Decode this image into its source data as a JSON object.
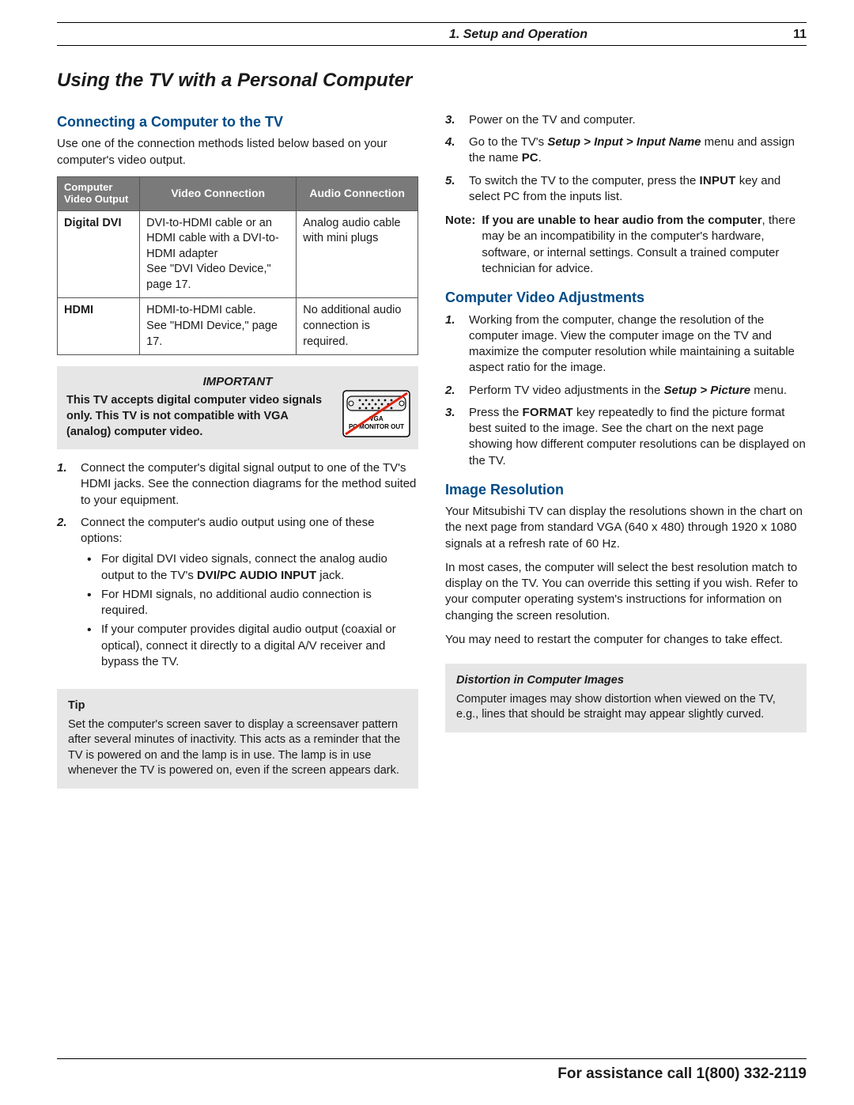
{
  "header": {
    "section": "1.  Setup and Operation",
    "page": "11"
  },
  "title": "Using the TV with a Personal Computer",
  "left": {
    "h_connect": "Connecting a Computer to the TV",
    "intro": "Use one of the connection methods listed below based on your computer's video output.",
    "table": {
      "headers": [
        "Computer Video Output",
        "Video Connection",
        "Audio Connection"
      ],
      "rows": [
        {
          "out": "Digital DVI",
          "video": "DVI-to-HDMI cable or an HDMI cable with a DVI-to-HDMI adapter\nSee \"DVI Video Device,\" page 17.",
          "audio": "Analog audio cable with mini plugs"
        },
        {
          "out": "HDMI",
          "video": "HDMI-to-HDMI cable.\nSee \"HDMI Device,\" page 17.",
          "audio": "No additional audio connec­tion is required."
        }
      ]
    },
    "important": {
      "title": "IMPORTANT",
      "body": "This TV accepts digital computer video signals only.  This TV is not compatible with VGA (analog) computer video.",
      "vga_label1": "VGA",
      "vga_label2": "PC MONITOR OUT"
    },
    "steps": [
      "Connect the computer's digital signal output to one of the TV's HDMI jacks.  See the connection dia­grams for the method suited to your equipment.",
      "Connect the computer's audio output using one of these options:"
    ],
    "bullets": [
      "For digital DVI video signals, connect the analog audio output to the TV's <b>DVI/PC AUDIO INPUT</b> jack.",
      "For HDMI signals, no additional audio connec­tion is required.",
      "If your computer provides digital audio output (coaxial or optical), connect it directly to a digital A/V receiver and bypass the TV."
    ],
    "tip": {
      "title": "Tip",
      "body": "Set the computer's screen saver to display a screensaver pattern after several minutes of inactiv­ity.  This acts as a reminder that the TV is powered on and the lamp is in use.  The lamp is in use whenever the TV is powered on, even if the screen appears dark."
    }
  },
  "right": {
    "steps": [
      "Power on the TV and computer.",
      "Go to the TV's <b><i>Setup &gt; Input &gt; Input Name</i></b> menu and assign the name <b>PC</b>.",
      "To switch the TV to the computer, press the <b class='smallcaps'>INPUT</b> key and select PC from the inputs list."
    ],
    "note_label": "Note:",
    "note_body": "<b>If you are unable to hear audio from the computer</b>, there may be an incompatibility in the computer's hardware, software, or internal settings.  Consult a trained computer technician for advice.",
    "h_adjust": "Computer Video Adjustments",
    "adjust_steps": [
      "Working from the computer, change the resolution of the computer image.  View the computer image on the TV and maximize the computer resolution while maintaining a suitable aspect ratio for the image.",
      "Perform TV video adjustments in the <b><i>Setup &gt; Picture</i></b> menu.",
      "Press the <b class='smallcaps'>FORMAT</b> key repeatedly to find the picture format best suited to the image.  See the chart on the next page showing how different computer resolutions can be displayed on the TV."
    ],
    "h_res": "Image Resolution",
    "res_p1": "Your Mitsubishi TV can display the resolutions shown in the chart on the next page from standard VGA (640 x 480) through 1920 x 1080 signals at a refresh rate of 60 Hz.",
    "res_p2": "In most cases, the computer will select the best resolu­tion match to display on the TV.  You can override this setting if you wish.  Refer to your computer operating system's instructions for information on changing the screen resolution.",
    "res_p3": "You may need to restart the computer for changes to take effect.",
    "distort": {
      "title": "Distortion in Computer Images",
      "body": "Computer images may show distortion when viewed on the TV, e.g., lines that should be straight may appear slightly curved."
    }
  },
  "footer": "For assistance call 1(800) 332-2119",
  "colors": {
    "heading": "#004b87",
    "box_bg": "#e6e6e6",
    "th_bg": "#7a7a7a"
  }
}
